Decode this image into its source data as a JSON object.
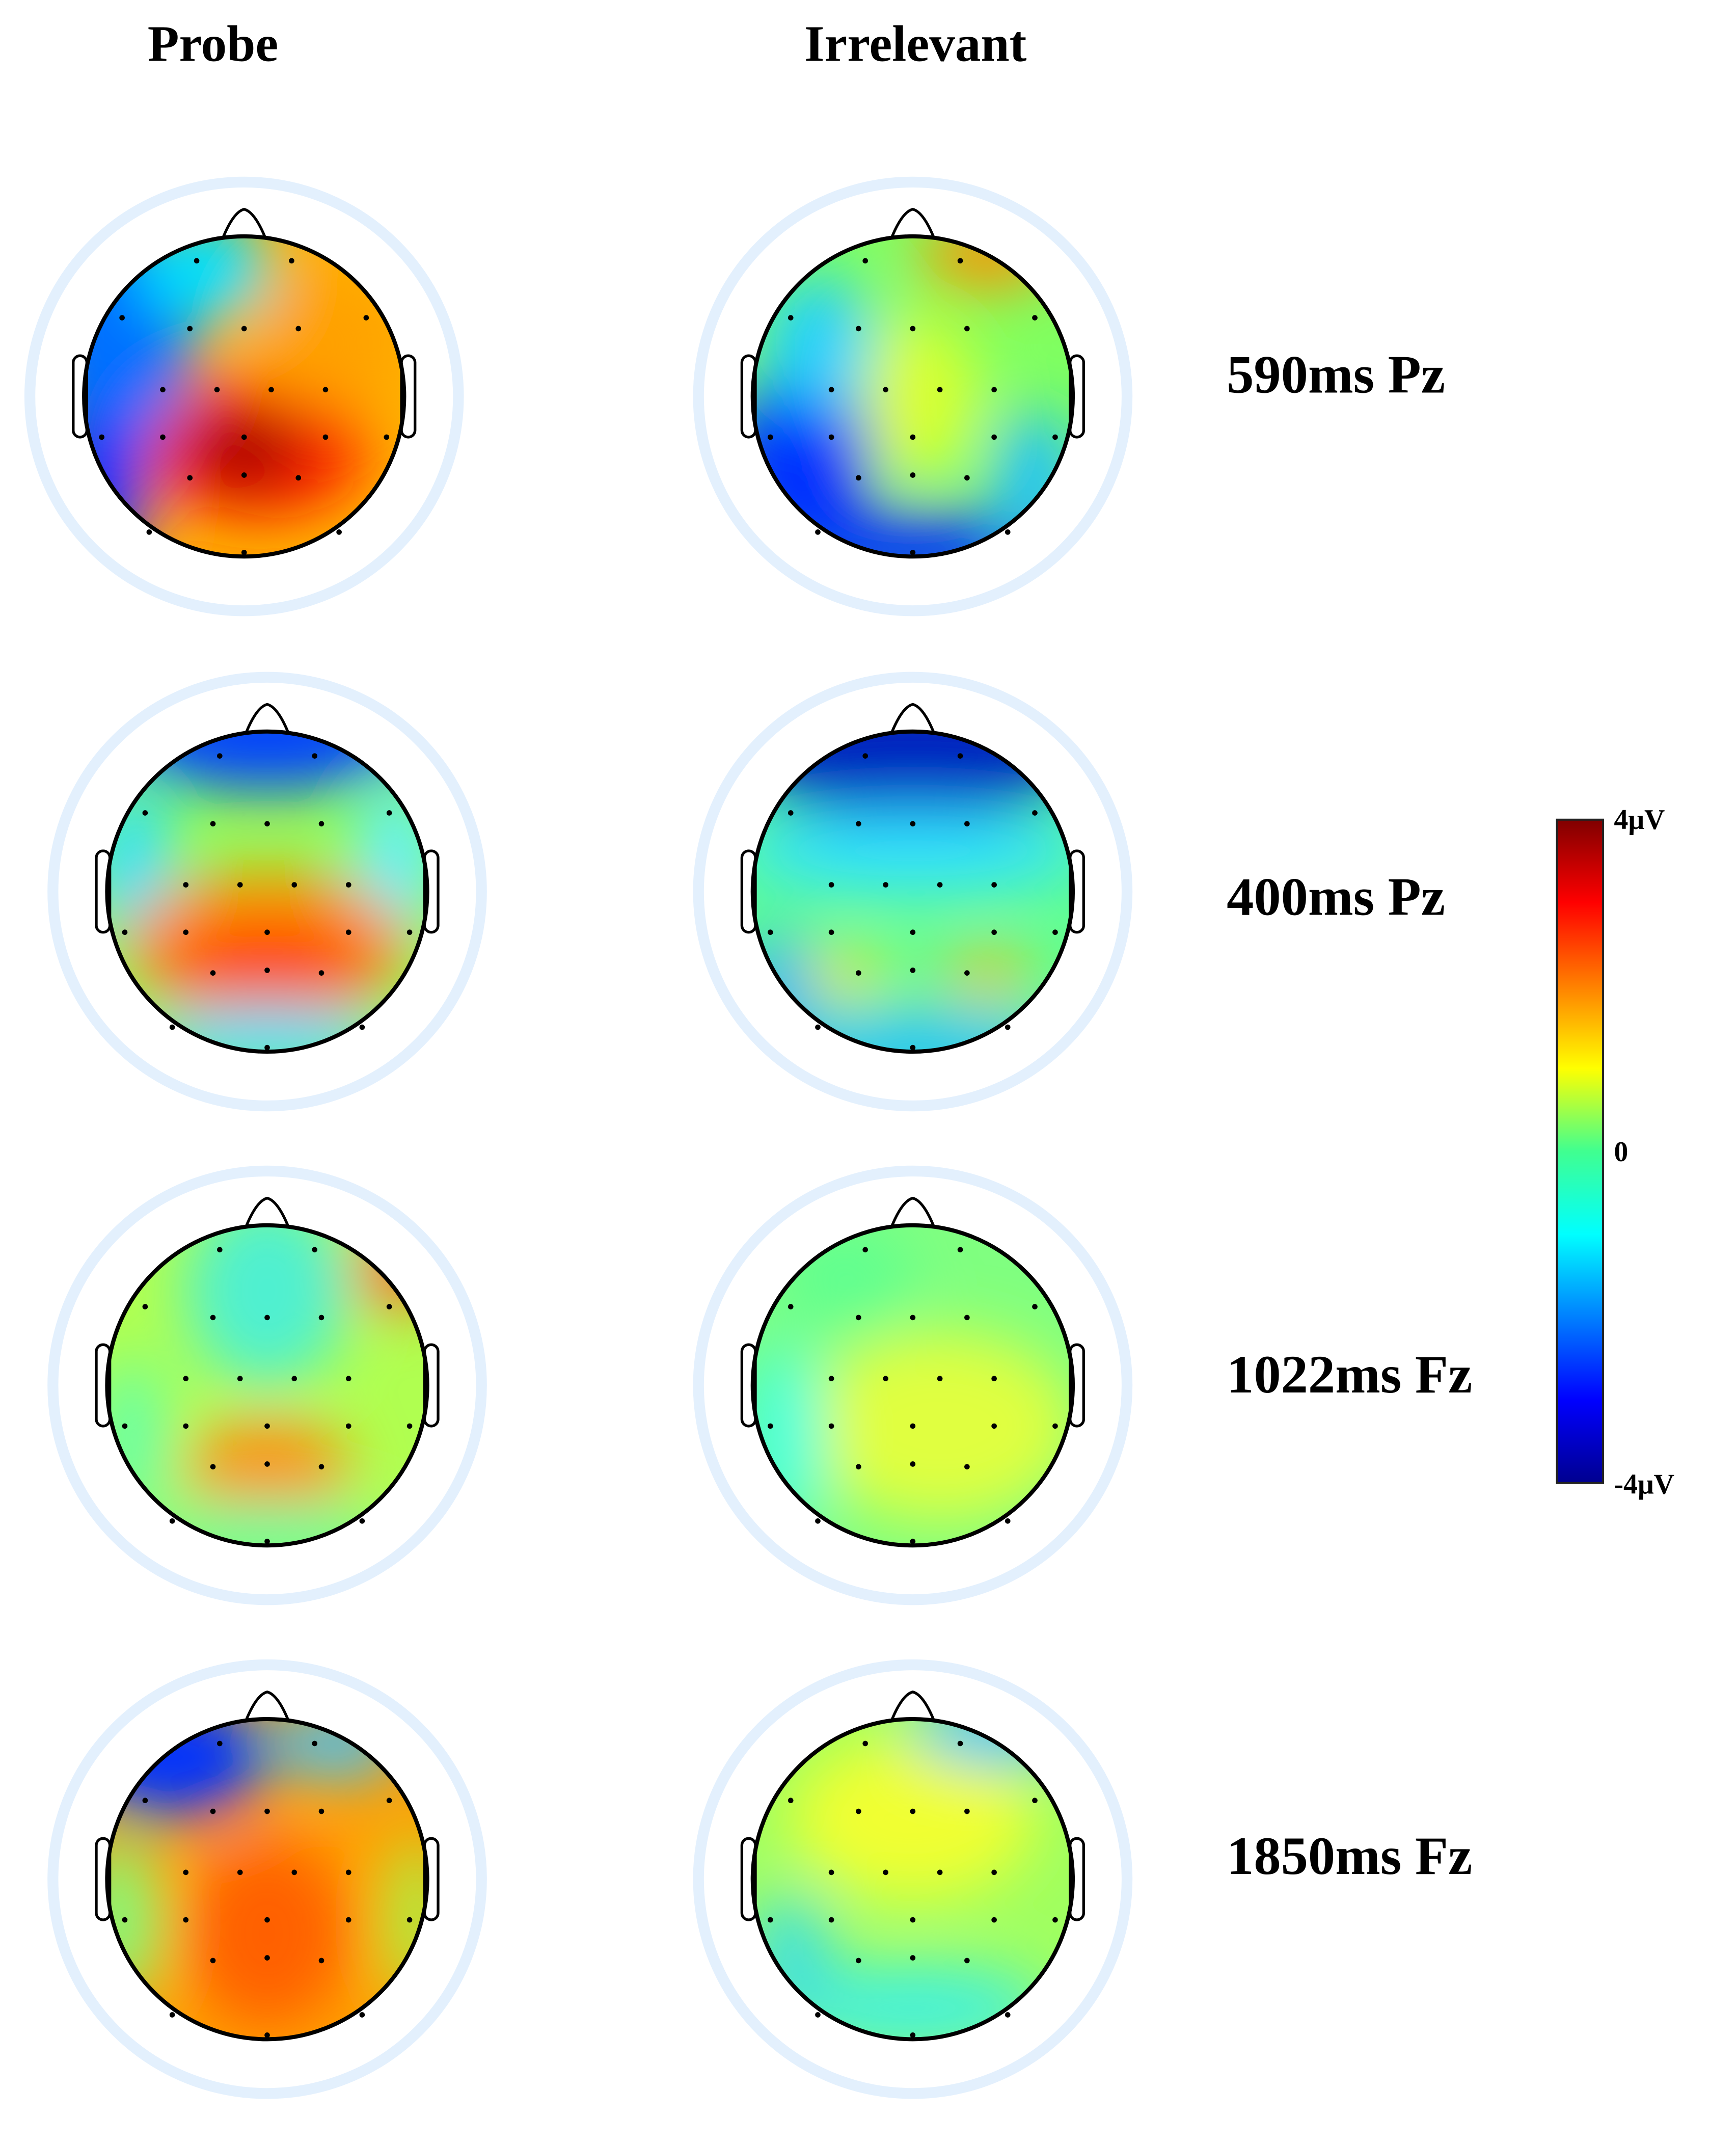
{
  "columns": [
    "Probe",
    "Irrelevant"
  ],
  "rows": [
    "590ms Pz",
    "400ms Pz",
    "1022ms Fz",
    "1850ms Fz"
  ],
  "colorbar": {
    "max": "4μV",
    "mid": "0",
    "min": "-4μV"
  }
}
